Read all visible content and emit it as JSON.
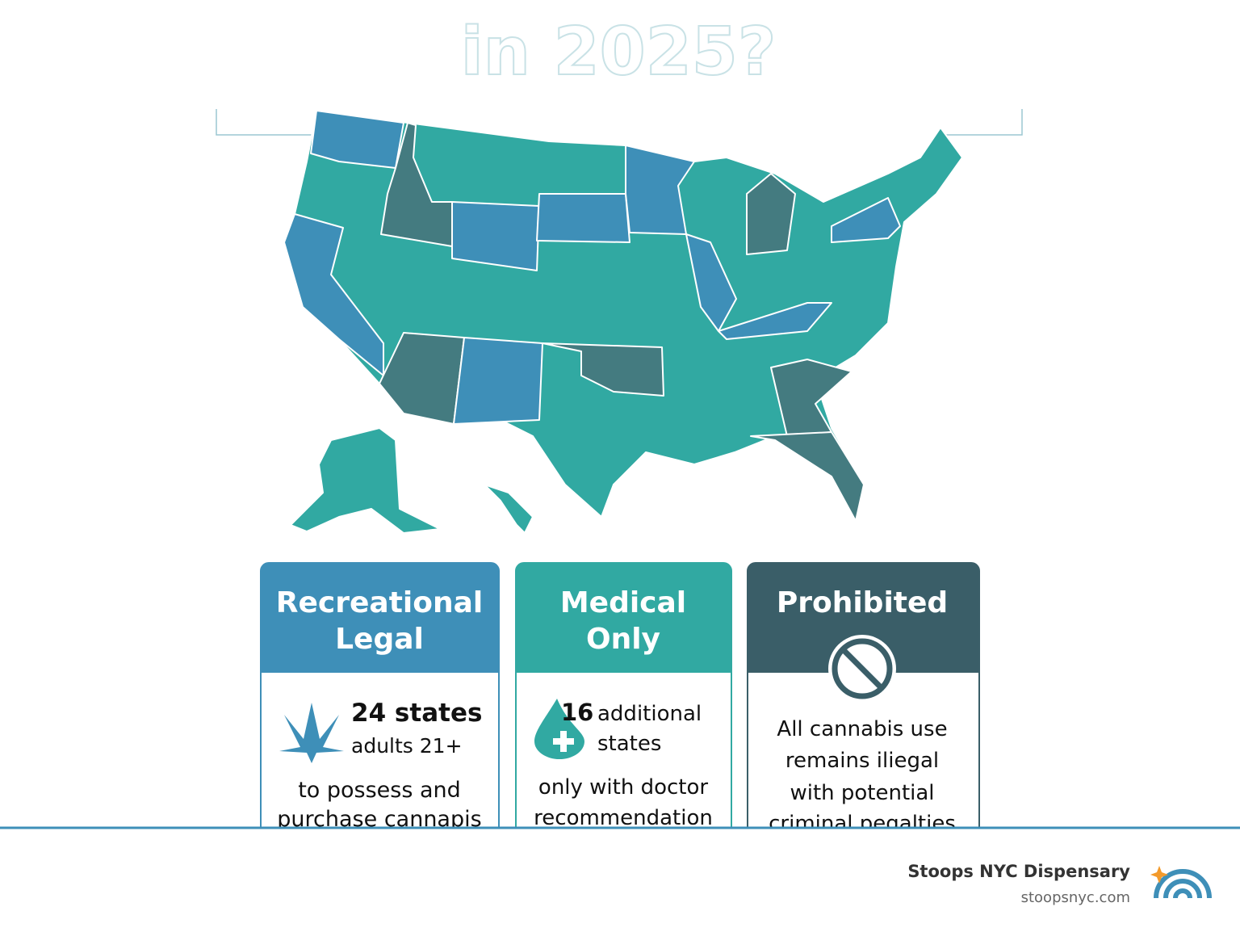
{
  "title": "in 2025?",
  "cards": [
    {
      "heading": [
        "Recreational",
        "Legal"
      ],
      "count": "24 states",
      "detail": [
        "adults 21+"
      ],
      "body": [
        "to possess and",
        "purchase cannapis"
      ]
    },
    {
      "heading": [
        "Medical",
        "Only"
      ],
      "count": "16",
      "detail": [
        "additional",
        "states"
      ],
      "body": [
        "only with doctor",
        "recommendation"
      ]
    },
    {
      "heading": [
        "Prohibited"
      ],
      "count": null,
      "detail": [],
      "body": [
        "All cannabis use",
        "remains iliegal",
        "with potential",
        "criminal pegalties"
      ]
    }
  ],
  "footer": {
    "brand": "Stoops NYC Dispensary",
    "url": "stoopsnyc.com"
  }
}
